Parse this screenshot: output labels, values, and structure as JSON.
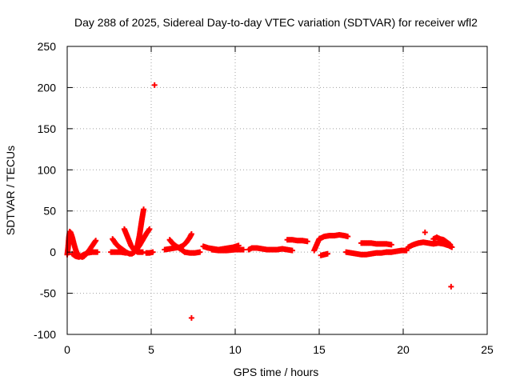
{
  "chart_data": {
    "type": "scatter",
    "title": "Day 288 of 2025, Sidereal Day-to-day VTEC variation (SDTVAR) for receiver wfl2",
    "xlabel": "GPS time / hours",
    "ylabel": "SDTVAR / TECUs",
    "xlim": [
      0,
      25
    ],
    "ylim": [
      -100,
      250
    ],
    "xticks": [
      "0",
      "5",
      "10",
      "15",
      "20",
      "25"
    ],
    "yticks": [
      "-100",
      "-50",
      "0",
      "50",
      "100",
      "150",
      "200",
      "250"
    ],
    "grid": true,
    "marker": "plus",
    "color": "#ff0000",
    "series": [
      {
        "segments": [
          [
            [
              0.0,
              -3
            ],
            [
              0.05,
              5
            ],
            [
              0.1,
              18
            ],
            [
              0.15,
              25
            ],
            [
              0.2,
              24
            ],
            [
              0.3,
              18
            ],
            [
              0.4,
              10
            ],
            [
              0.5,
              3
            ],
            [
              0.6,
              -2
            ],
            [
              0.75,
              -5
            ],
            [
              0.9,
              -6
            ],
            [
              1.0,
              -5
            ],
            [
              1.1,
              -3
            ],
            [
              1.3,
              2
            ],
            [
              1.5,
              8
            ],
            [
              1.7,
              14
            ]
          ],
          [
            [
              0.3,
              -2
            ],
            [
              0.5,
              -5
            ],
            [
              0.7,
              -6
            ],
            [
              0.9,
              -4
            ],
            [
              1.2,
              -1
            ],
            [
              1.5,
              0
            ],
            [
              1.8,
              0
            ]
          ],
          [
            [
              2.6,
              0
            ],
            [
              2.8,
              0
            ],
            [
              3.0,
              0
            ],
            [
              3.2,
              0
            ],
            [
              3.5,
              -1
            ]
          ],
          [
            [
              2.7,
              16
            ],
            [
              2.9,
              10
            ],
            [
              3.1,
              6
            ],
            [
              3.3,
              3
            ],
            [
              3.5,
              0
            ],
            [
              3.7,
              -2
            ],
            [
              3.85,
              -2
            ],
            [
              4.0,
              0
            ],
            [
              4.15,
              5
            ],
            [
              4.3,
              20
            ],
            [
              4.45,
              40
            ],
            [
              4.55,
              52
            ]
          ],
          [
            [
              3.4,
              28
            ],
            [
              3.6,
              18
            ],
            [
              3.8,
              8
            ],
            [
              4.0,
              2
            ],
            [
              4.2,
              0
            ],
            [
              4.5,
              0
            ]
          ],
          [
            [
              4.1,
              2
            ],
            [
              4.3,
              8
            ],
            [
              4.5,
              15
            ],
            [
              4.7,
              22
            ],
            [
              4.9,
              28
            ]
          ],
          [
            [
              4.7,
              -1
            ],
            [
              4.9,
              -1
            ],
            [
              5.1,
              0
            ]
          ],
          [
            [
              5.8,
              3
            ],
            [
              6.1,
              4
            ],
            [
              6.4,
              5
            ],
            [
              6.7,
              6
            ],
            [
              6.9,
              8
            ],
            [
              7.1,
              12
            ],
            [
              7.3,
              18
            ],
            [
              7.4,
              22
            ]
          ],
          [
            [
              6.1,
              15
            ],
            [
              6.3,
              10
            ],
            [
              6.5,
              7
            ],
            [
              6.8,
              3
            ],
            [
              7.0,
              0
            ]
          ],
          [
            [
              7.0,
              0
            ],
            [
              7.3,
              -1
            ],
            [
              7.6,
              -1
            ],
            [
              7.9,
              0
            ]
          ],
          [
            [
              8.1,
              7
            ],
            [
              8.4,
              5
            ],
            [
              8.7,
              4
            ],
            [
              9.0,
              3
            ],
            [
              9.3,
              4
            ],
            [
              9.6,
              5
            ],
            [
              9.9,
              6
            ],
            [
              10.2,
              8
            ]
          ],
          [
            [
              8.6,
              3
            ],
            [
              9.0,
              2
            ],
            [
              9.5,
              2
            ],
            [
              10.0,
              3
            ],
            [
              10.5,
              3
            ]
          ],
          [
            [
              10.8,
              3
            ],
            [
              11.0,
              5
            ],
            [
              11.3,
              5
            ],
            [
              11.6,
              4
            ],
            [
              11.9,
              3
            ],
            [
              12.2,
              3
            ],
            [
              12.5,
              3
            ],
            [
              12.8,
              4
            ],
            [
              13.1,
              3
            ],
            [
              13.4,
              2
            ]
          ],
          [
            [
              13.1,
              15
            ],
            [
              13.4,
              15
            ],
            [
              13.7,
              14
            ],
            [
              14.0,
              14
            ],
            [
              14.3,
              13
            ]
          ],
          [
            [
              14.7,
              2
            ],
            [
              15.0,
              16
            ],
            [
              15.3,
              19
            ],
            [
              15.6,
              20
            ],
            [
              15.9,
              20
            ],
            [
              16.2,
              21
            ],
            [
              16.5,
              20
            ],
            [
              16.7,
              19
            ]
          ],
          [
            [
              15.1,
              -4
            ],
            [
              15.3,
              -3
            ],
            [
              15.5,
              -2
            ]
          ],
          [
            [
              16.6,
              0
            ],
            [
              16.9,
              -1
            ],
            [
              17.2,
              -2
            ],
            [
              17.5,
              -3
            ],
            [
              17.8,
              -3
            ],
            [
              18.1,
              -2
            ],
            [
              18.4,
              -1
            ],
            [
              18.7,
              -1
            ],
            [
              19.0,
              0
            ],
            [
              19.3,
              0
            ]
          ],
          [
            [
              17.5,
              11
            ],
            [
              17.8,
              11
            ],
            [
              18.1,
              11
            ],
            [
              18.4,
              10
            ],
            [
              18.7,
              10
            ],
            [
              19.0,
              10
            ],
            [
              19.3,
              9
            ]
          ],
          [
            [
              19.0,
              0
            ],
            [
              19.3,
              0
            ],
            [
              19.6,
              1
            ],
            [
              19.9,
              2
            ],
            [
              20.2,
              2
            ]
          ],
          [
            [
              20.3,
              6
            ],
            [
              20.6,
              9
            ],
            [
              20.9,
              11
            ],
            [
              21.2,
              12
            ],
            [
              21.5,
              11
            ],
            [
              21.8,
              10
            ],
            [
              22.1,
              11
            ],
            [
              22.4,
              10
            ],
            [
              22.7,
              8
            ],
            [
              22.9,
              6
            ]
          ],
          [
            [
              21.8,
              16
            ],
            [
              22.0,
              18
            ],
            [
              22.2,
              16
            ],
            [
              22.4,
              15
            ],
            [
              22.6,
              12
            ],
            [
              22.8,
              9
            ]
          ]
        ],
        "points": [
          [
            5.2,
            203
          ],
          [
            7.4,
            -80
          ],
          [
            21.3,
            24
          ],
          [
            22.85,
            -42
          ]
        ]
      }
    ]
  }
}
